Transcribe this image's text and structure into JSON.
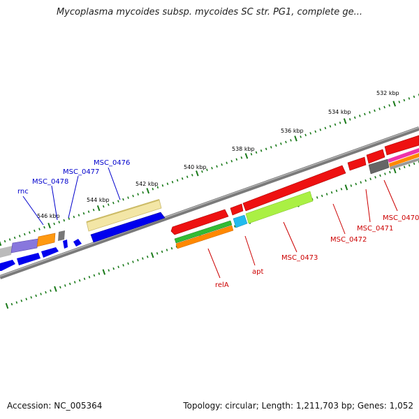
{
  "title": "Mycoplasma mycoides subsp. mycoides SC str. PG1, complete ge...",
  "footer": {
    "accession": "Accession: NC_005364",
    "topology": "Topology: circular; Length: 1,211,703 bp; Genes: 1,052"
  },
  "colors": {
    "backbone": "#8a8a8a",
    "tick": "#1a7a1a",
    "tick_label": "#000000",
    "plus_label": "#0000cc",
    "minus_label": "#cc0000"
  },
  "ticks": [
    {
      "label": "532 kbp"
    },
    {
      "label": "534 kbp"
    },
    {
      "label": "536 kbp"
    },
    {
      "label": "538 kbp"
    },
    {
      "label": "540 kbp"
    },
    {
      "label": "542 kbp"
    },
    {
      "label": "544 kbp"
    },
    {
      "label": "546 kbp"
    }
  ],
  "gene_labels": {
    "rnc": "rnc",
    "msc_0478": "MSC_0478",
    "msc_0477": "MSC_0477",
    "msc_0476": "MSC_0476",
    "rela": "relA",
    "apt": "apt",
    "msc_0473": "MSC_0473",
    "msc_0472": "MSC_0472",
    "msc_0471": "MSC_0471",
    "msc_0470": "MSC_0470"
  },
  "features": [
    {
      "name": "MSC_0476",
      "color": "#f0e4a0"
    },
    {
      "name": "MSC_0476-cds",
      "color": "#0000ee"
    },
    {
      "name": "relA",
      "color": "#ee0000"
    },
    {
      "name": "apt",
      "color": "#22ccee"
    },
    {
      "name": "MSC_0473",
      "color": "#a8f040"
    },
    {
      "name": "MSC_0472",
      "color": "#ee0000"
    },
    {
      "name": "MSC_0471",
      "color": "#ee0000"
    },
    {
      "name": "MSC_0470",
      "color": "#ee0000"
    },
    {
      "name": "relA-cog",
      "color": "#33bb33"
    },
    {
      "name": "relA-cog2",
      "color": "#ff8800"
    },
    {
      "name": "MSC_0478",
      "color": "#ff8800"
    },
    {
      "name": "rnc",
      "color": "#7766cc"
    }
  ]
}
